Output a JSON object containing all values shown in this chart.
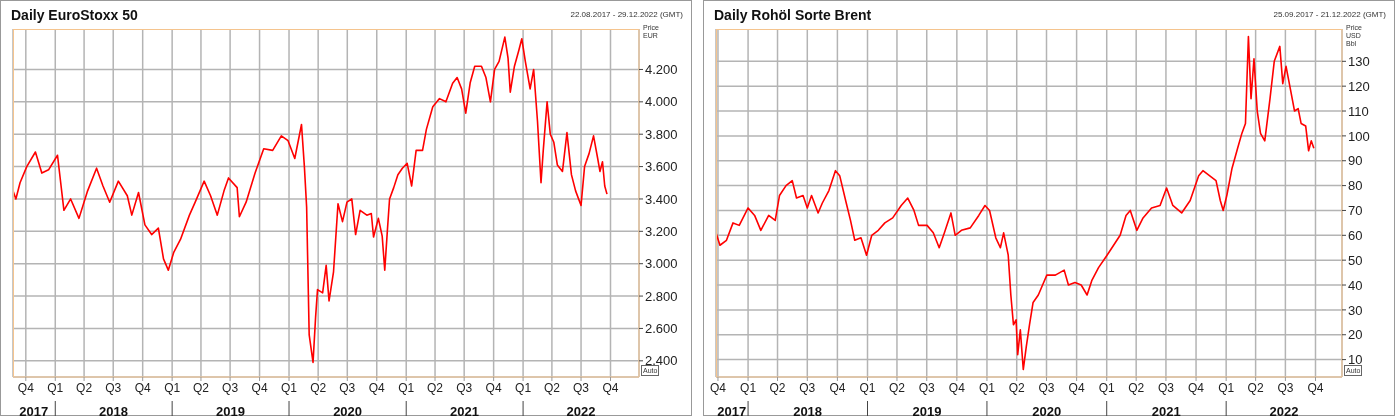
{
  "chart_data": [
    {
      "type": "line",
      "title": "Daily EuroStoxx 50",
      "ylabel": "Price EUR",
      "annotations": [
        "22.08.2017 - 29.12.2022 (GMT)",
        "Auto"
      ],
      "grid": true,
      "marker": "none",
      "line_style": "solid",
      "color": "#ff0000",
      "x": [
        "2017-08-22",
        "2017-08-31",
        "2017-09-13",
        "2017-10-04",
        "2017-10-31",
        "2017-11-20",
        "2017-12-11",
        "2018-01-08",
        "2018-01-28",
        "2018-02-18",
        "2018-03-16",
        "2018-04-12",
        "2018-05-10",
        "2018-05-30",
        "2018-06-20",
        "2018-07-17",
        "2018-08-14",
        "2018-08-28",
        "2018-09-18",
        "2018-10-08",
        "2018-10-29",
        "2018-11-19",
        "2018-12-05",
        "2018-12-20",
        "2019-01-06",
        "2019-01-27",
        "2019-02-24",
        "2019-03-14",
        "2019-04-11",
        "2019-05-01",
        "2019-05-22",
        "2019-06-12",
        "2019-06-26",
        "2019-07-23",
        "2019-07-30",
        "2019-08-20",
        "2019-09-17",
        "2019-10-14",
        "2019-11-11",
        "2019-12-08",
        "2019-12-29",
        "2020-01-19",
        "2020-02-09",
        "2020-02-18",
        "2020-02-25",
        "2020-03-04",
        "2020-03-16",
        "2020-03-24",
        "2020-03-30",
        "2020-04-15",
        "2020-04-26",
        "2020-05-05",
        "2020-05-19",
        "2020-06-02",
        "2020-06-16",
        "2020-06-30",
        "2020-07-15",
        "2020-07-27",
        "2020-08-10",
        "2020-08-31",
        "2020-09-14",
        "2020-09-21",
        "2020-10-06",
        "2020-10-18",
        "2020-10-26",
        "2020-11-03",
        "2020-11-10",
        "2020-11-23",
        "2020-12-06",
        "2020-12-20",
        "2021-01-04",
        "2021-01-18",
        "2021-02-01",
        "2021-02-21",
        "2021-03-05",
        "2021-03-25",
        "2021-04-15",
        "2021-05-05",
        "2021-05-26",
        "2021-06-09",
        "2021-06-23",
        "2021-07-06",
        "2021-07-20",
        "2021-08-03",
        "2021-08-24",
        "2021-09-07",
        "2021-09-21",
        "2021-10-04",
        "2021-10-18",
        "2021-11-05",
        "2021-11-15",
        "2021-11-22",
        "2021-12-05",
        "2021-12-19",
        "2021-12-28",
        "2022-01-08",
        "2022-01-23",
        "2022-02-03",
        "2022-02-15",
        "2022-02-26",
        "2022-03-05",
        "2022-03-17",
        "2022-03-27",
        "2022-04-07",
        "2022-04-18",
        "2022-05-04",
        "2022-05-18",
        "2022-06-01",
        "2022-06-14",
        "2022-07-01",
        "2022-07-12",
        "2022-07-26",
        "2022-08-09",
        "2022-08-22",
        "2022-08-29",
        "2022-09-06",
        "2022-09-13",
        "2022-09-20"
      ],
      "values": [
        3450,
        3400,
        3500,
        3600,
        3690,
        3560,
        3580,
        3670,
        3330,
        3400,
        3280,
        3450,
        3590,
        3480,
        3380,
        3510,
        3420,
        3300,
        3440,
        3240,
        3180,
        3220,
        3030,
        2960,
        3070,
        3150,
        3300,
        3380,
        3510,
        3420,
        3300,
        3450,
        3530,
        3470,
        3290,
        3380,
        3560,
        3710,
        3700,
        3790,
        3760,
        3650,
        3860,
        3600,
        3350,
        2560,
        2390,
        2670,
        2840,
        2820,
        2990,
        2770,
        2950,
        3370,
        3260,
        3380,
        3400,
        3180,
        3330,
        3300,
        3310,
        3165,
        3280,
        3170,
        2960,
        3200,
        3400,
        3470,
        3550,
        3590,
        3620,
        3480,
        3700,
        3700,
        3830,
        3970,
        4020,
        4000,
        4115,
        4150,
        4080,
        3930,
        4120,
        4220,
        4220,
        4150,
        4000,
        4200,
        4250,
        4400,
        4270,
        4060,
        4220,
        4320,
        4390,
        4250,
        4080,
        4200,
        3880,
        3500,
        3700,
        4000,
        3800,
        3750,
        3610,
        3570,
        3810,
        3550,
        3450,
        3360,
        3600,
        3680,
        3790,
        3650,
        3570,
        3630,
        3480,
        3430
      ],
      "xlim": [
        "2017-08-22",
        "2022-12-29"
      ],
      "xticks": [
        {
          "value": "2017-10-01",
          "label": "Q4"
        },
        {
          "value": "2018-01-01",
          "label": "Q1"
        },
        {
          "value": "2018-04-01",
          "label": "Q2"
        },
        {
          "value": "2018-07-01",
          "label": "Q3"
        },
        {
          "value": "2018-10-01",
          "label": "Q4"
        },
        {
          "value": "2019-01-01",
          "label": "Q1"
        },
        {
          "value": "2019-04-01",
          "label": "Q2"
        },
        {
          "value": "2019-07-01",
          "label": "Q3"
        },
        {
          "value": "2019-10-01",
          "label": "Q4"
        },
        {
          "value": "2020-01-01",
          "label": "Q1"
        },
        {
          "value": "2020-04-01",
          "label": "Q2"
        },
        {
          "value": "2020-07-01",
          "label": "Q3"
        },
        {
          "value": "2020-10-01",
          "label": "Q4"
        },
        {
          "value": "2021-01-01",
          "label": "Q1"
        },
        {
          "value": "2021-04-01",
          "label": "Q2"
        },
        {
          "value": "2021-07-01",
          "label": "Q3"
        },
        {
          "value": "2021-10-01",
          "label": "Q4"
        },
        {
          "value": "2022-01-01",
          "label": "Q1"
        },
        {
          "value": "2022-04-01",
          "label": "Q2"
        },
        {
          "value": "2022-07-01",
          "label": "Q3"
        },
        {
          "value": "2022-10-01",
          "label": "Q4"
        }
      ],
      "x2lim": [
        "2017-08-22",
        "2022-12-29"
      ],
      "x2ticks": [
        {
          "value": "2017-10-26",
          "label": "2017"
        },
        {
          "value": "2018-01-01",
          "label": null
        },
        {
          "value": "2018-07-02",
          "label": "2018"
        },
        {
          "value": "2019-01-01",
          "label": null
        },
        {
          "value": "2019-07-02",
          "label": "2019"
        },
        {
          "value": "2020-01-01",
          "label": null
        },
        {
          "value": "2020-07-02",
          "label": "2020"
        },
        {
          "value": "2021-01-01",
          "label": null
        },
        {
          "value": "2021-07-02",
          "label": "2021"
        },
        {
          "value": "2022-01-01",
          "label": null
        },
        {
          "value": "2022-07-01",
          "label": "2022"
        }
      ],
      "ylim": [
        2300,
        4450
      ],
      "yticks": [
        {
          "value": 2400,
          "label": "2.400"
        },
        {
          "value": 2600,
          "label": "2.600"
        },
        {
          "value": 2800,
          "label": "2.800"
        },
        {
          "value": 3000,
          "label": "3.000"
        },
        {
          "value": 3200,
          "label": "3.200"
        },
        {
          "value": 3400,
          "label": "3.400"
        },
        {
          "value": 3600,
          "label": "3.600"
        },
        {
          "value": 3800,
          "label": "3.800"
        },
        {
          "value": 4000,
          "label": "4.000"
        },
        {
          "value": 4200,
          "label": "4.200"
        }
      ]
    },
    {
      "type": "line",
      "title": "Daily Rohöl Sorte Brent",
      "ylabel": "Price USD Bbl",
      "annotations": [
        "25.09.2017 - 21.12.2022 (GMT)",
        "Auto"
      ],
      "grid": true,
      "marker": "none",
      "line_style": "solid",
      "color": "#ff0000",
      "x": [
        "2017-09-25",
        "2017-10-07",
        "2017-10-27",
        "2017-11-16",
        "2017-12-05",
        "2018-01-01",
        "2018-01-21",
        "2018-02-09",
        "2018-03-05",
        "2018-03-25",
        "2018-04-07",
        "2018-04-27",
        "2018-05-16",
        "2018-05-29",
        "2018-06-18",
        "2018-07-01",
        "2018-07-14",
        "2018-08-03",
        "2018-08-16",
        "2018-09-05",
        "2018-09-25",
        "2018-10-08",
        "2018-10-28",
        "2018-11-10",
        "2018-11-23",
        "2018-12-12",
        "2018-12-29",
        "2019-01-14",
        "2019-02-03",
        "2019-02-23",
        "2019-03-19",
        "2019-04-14",
        "2019-05-04",
        "2019-05-23",
        "2019-06-06",
        "2019-07-02",
        "2019-07-21",
        "2019-08-08",
        "2019-08-24",
        "2019-09-13",
        "2019-09-26",
        "2019-10-15",
        "2019-11-11",
        "2019-12-07",
        "2019-12-26",
        "2020-01-09",
        "2020-01-28",
        "2020-02-11",
        "2020-02-21",
        "2020-03-06",
        "2020-03-14",
        "2020-03-22",
        "2020-03-30",
        "2020-04-04",
        "2020-04-12",
        "2020-04-21",
        "2020-04-30",
        "2020-05-10",
        "2020-05-21",
        "2020-06-06",
        "2020-06-19",
        "2020-07-02",
        "2020-07-28",
        "2020-08-24",
        "2020-09-06",
        "2020-09-26",
        "2020-10-15",
        "2020-11-02",
        "2020-11-17",
        "2020-12-07",
        "2021-01-02",
        "2021-01-22",
        "2021-02-11",
        "2021-03-01",
        "2021-03-14",
        "2021-04-03",
        "2021-04-22",
        "2021-05-18",
        "2021-06-13",
        "2021-07-03",
        "2021-07-22",
        "2021-08-18",
        "2021-09-13",
        "2021-10-09",
        "2021-10-22",
        "2021-11-11",
        "2021-12-01",
        "2021-12-14",
        "2021-12-23",
        "2022-01-03",
        "2022-01-19",
        "2022-02-05",
        "2022-02-18",
        "2022-03-01",
        "2022-03-10",
        "2022-03-18",
        "2022-03-27",
        "2022-04-06",
        "2022-04-16",
        "2022-04-29",
        "2022-05-15",
        "2022-05-28",
        "2022-06-14",
        "2022-06-23",
        "2022-07-03",
        "2022-07-16",
        "2022-07-29",
        "2022-08-09",
        "2022-08-18",
        "2022-09-01",
        "2022-09-10",
        "2022-09-18",
        "2022-09-26"
      ],
      "values": [
        61,
        56,
        58,
        65,
        64,
        71,
        68,
        62,
        68,
        66,
        76,
        80,
        82,
        75,
        76,
        71,
        76,
        69,
        73,
        78,
        86,
        84,
        73,
        66,
        58,
        59,
        52,
        60,
        62,
        65,
        67,
        72,
        75,
        70,
        64,
        64,
        61,
        55,
        61,
        69,
        60,
        62,
        63,
        68,
        72,
        70,
        59,
        55,
        61,
        52,
        36,
        24,
        26,
        12,
        22,
        6,
        15,
        24,
        33,
        36,
        40,
        44,
        44,
        46,
        40,
        41,
        40,
        36,
        42,
        47,
        52,
        56,
        60,
        68,
        70,
        62,
        67,
        71,
        72,
        79,
        72,
        69,
        74,
        84,
        86,
        84,
        82,
        74,
        70,
        76,
        87,
        95,
        101,
        105,
        140,
        115,
        131,
        110,
        101,
        98,
        115,
        130,
        136,
        121,
        128,
        119,
        110,
        111,
        105,
        104,
        94,
        98,
        95
      ],
      "xlim": [
        "2017-09-25",
        "2022-12-21"
      ],
      "xticks": [
        {
          "value": "2017-10-01",
          "label": "Q4"
        },
        {
          "value": "2018-01-01",
          "label": "Q1"
        },
        {
          "value": "2018-04-01",
          "label": "Q2"
        },
        {
          "value": "2018-07-01",
          "label": "Q3"
        },
        {
          "value": "2018-10-01",
          "label": "Q4"
        },
        {
          "value": "2019-01-01",
          "label": "Q1"
        },
        {
          "value": "2019-04-01",
          "label": "Q2"
        },
        {
          "value": "2019-07-01",
          "label": "Q3"
        },
        {
          "value": "2019-10-01",
          "label": "Q4"
        },
        {
          "value": "2020-01-01",
          "label": "Q1"
        },
        {
          "value": "2020-04-01",
          "label": "Q2"
        },
        {
          "value": "2020-07-01",
          "label": "Q3"
        },
        {
          "value": "2020-10-01",
          "label": "Q4"
        },
        {
          "value": "2021-01-01",
          "label": "Q1"
        },
        {
          "value": "2021-04-01",
          "label": "Q2"
        },
        {
          "value": "2021-07-01",
          "label": "Q3"
        },
        {
          "value": "2021-10-01",
          "label": "Q4"
        },
        {
          "value": "2022-01-01",
          "label": "Q1"
        },
        {
          "value": "2022-04-01",
          "label": "Q2"
        },
        {
          "value": "2022-07-01",
          "label": "Q3"
        },
        {
          "value": "2022-10-01",
          "label": "Q4"
        }
      ],
      "x2lim": [
        "2017-09-25",
        "2022-12-21"
      ],
      "x2ticks": [
        {
          "value": "2017-11-12",
          "label": "2017"
        },
        {
          "value": "2018-01-01",
          "label": null
        },
        {
          "value": "2018-07-02",
          "label": "2018"
        },
        {
          "value": "2019-01-01",
          "label": null
        },
        {
          "value": "2019-07-02",
          "label": "2019"
        },
        {
          "value": "2020-01-01",
          "label": null
        },
        {
          "value": "2020-07-02",
          "label": "2020"
        },
        {
          "value": "2021-01-01",
          "label": null
        },
        {
          "value": "2021-07-02",
          "label": "2021"
        },
        {
          "value": "2022-01-01",
          "label": null
        },
        {
          "value": "2022-06-27",
          "label": "2022"
        }
      ],
      "ylim": [
        3,
        143
      ],
      "yticks": [
        10,
        20,
        30,
        40,
        50,
        60,
        70,
        80,
        90,
        100,
        110,
        120,
        130
      ]
    }
  ]
}
